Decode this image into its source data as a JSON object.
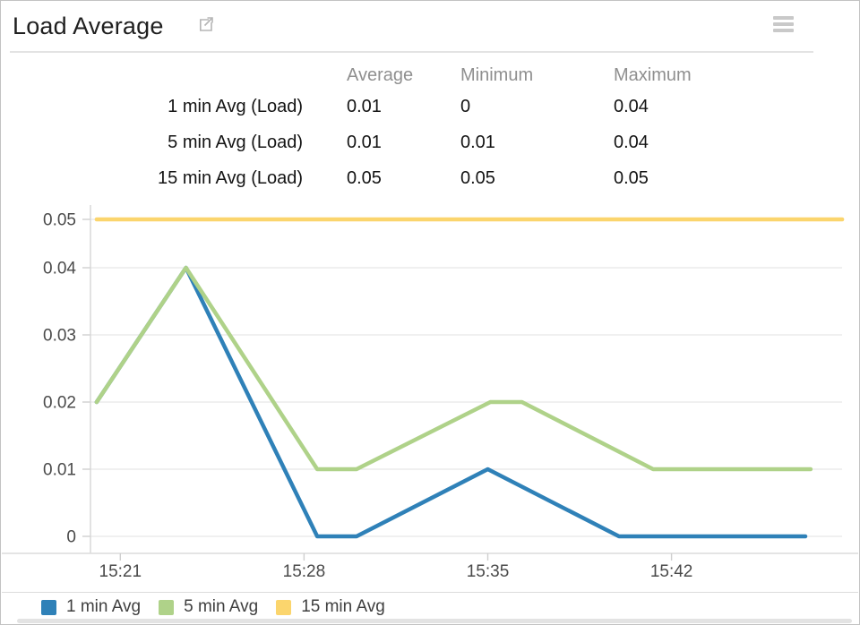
{
  "header": {
    "title": "Load Average",
    "external_link_icon": "external-link-icon",
    "menu_icon": "hamburger-menu-icon"
  },
  "summary_table": {
    "columns": [
      "Average",
      "Minimum",
      "Maximum"
    ],
    "rows": [
      {
        "label": "1 min Avg (Load)",
        "values": [
          "0.01",
          "0",
          "0.04"
        ]
      },
      {
        "label": "5 min Avg (Load)",
        "values": [
          "0.01",
          "0.01",
          "0.04"
        ]
      },
      {
        "label": "15 min Avg (Load)",
        "values": [
          "0.05",
          "0.05",
          "0.05"
        ]
      }
    ]
  },
  "chart_data": {
    "type": "line",
    "title": "Load Average",
    "xlabel": "",
    "ylabel": "",
    "x_unit": "minutes after 15:20",
    "x_ticks": [
      {
        "t": 1,
        "label": "15:21"
      },
      {
        "t": 8,
        "label": "15:28"
      },
      {
        "t": 15,
        "label": "15:35"
      },
      {
        "t": 22,
        "label": "15:42"
      }
    ],
    "y_ticks": [
      0,
      0.01,
      0.02,
      0.03,
      0.04,
      0.05
    ],
    "ylim": [
      0,
      0.05
    ],
    "grid": true,
    "legend_position": "bottom",
    "series": [
      {
        "name": "1 min Avg",
        "color": "#2f81b8",
        "points": [
          [
            0.1,
            0.02
          ],
          [
            3.5,
            0.04
          ],
          [
            8.5,
            0
          ],
          [
            10,
            0
          ],
          [
            15,
            0.01
          ],
          [
            20,
            0
          ],
          [
            27.1,
            0
          ]
        ]
      },
      {
        "name": "5 min Avg",
        "color": "#afd289",
        "points": [
          [
            0.1,
            0.02
          ],
          [
            3.5,
            0.04
          ],
          [
            8.5,
            0.01
          ],
          [
            10,
            0.01
          ],
          [
            15.1,
            0.02
          ],
          [
            16.3,
            0.02
          ],
          [
            21.3,
            0.01
          ],
          [
            27.3,
            0.01
          ]
        ]
      },
      {
        "name": "15 min Avg",
        "color": "#fbd56d",
        "points": [
          [
            0.1,
            0.05
          ],
          [
            28.5,
            0.05
          ]
        ]
      }
    ]
  }
}
